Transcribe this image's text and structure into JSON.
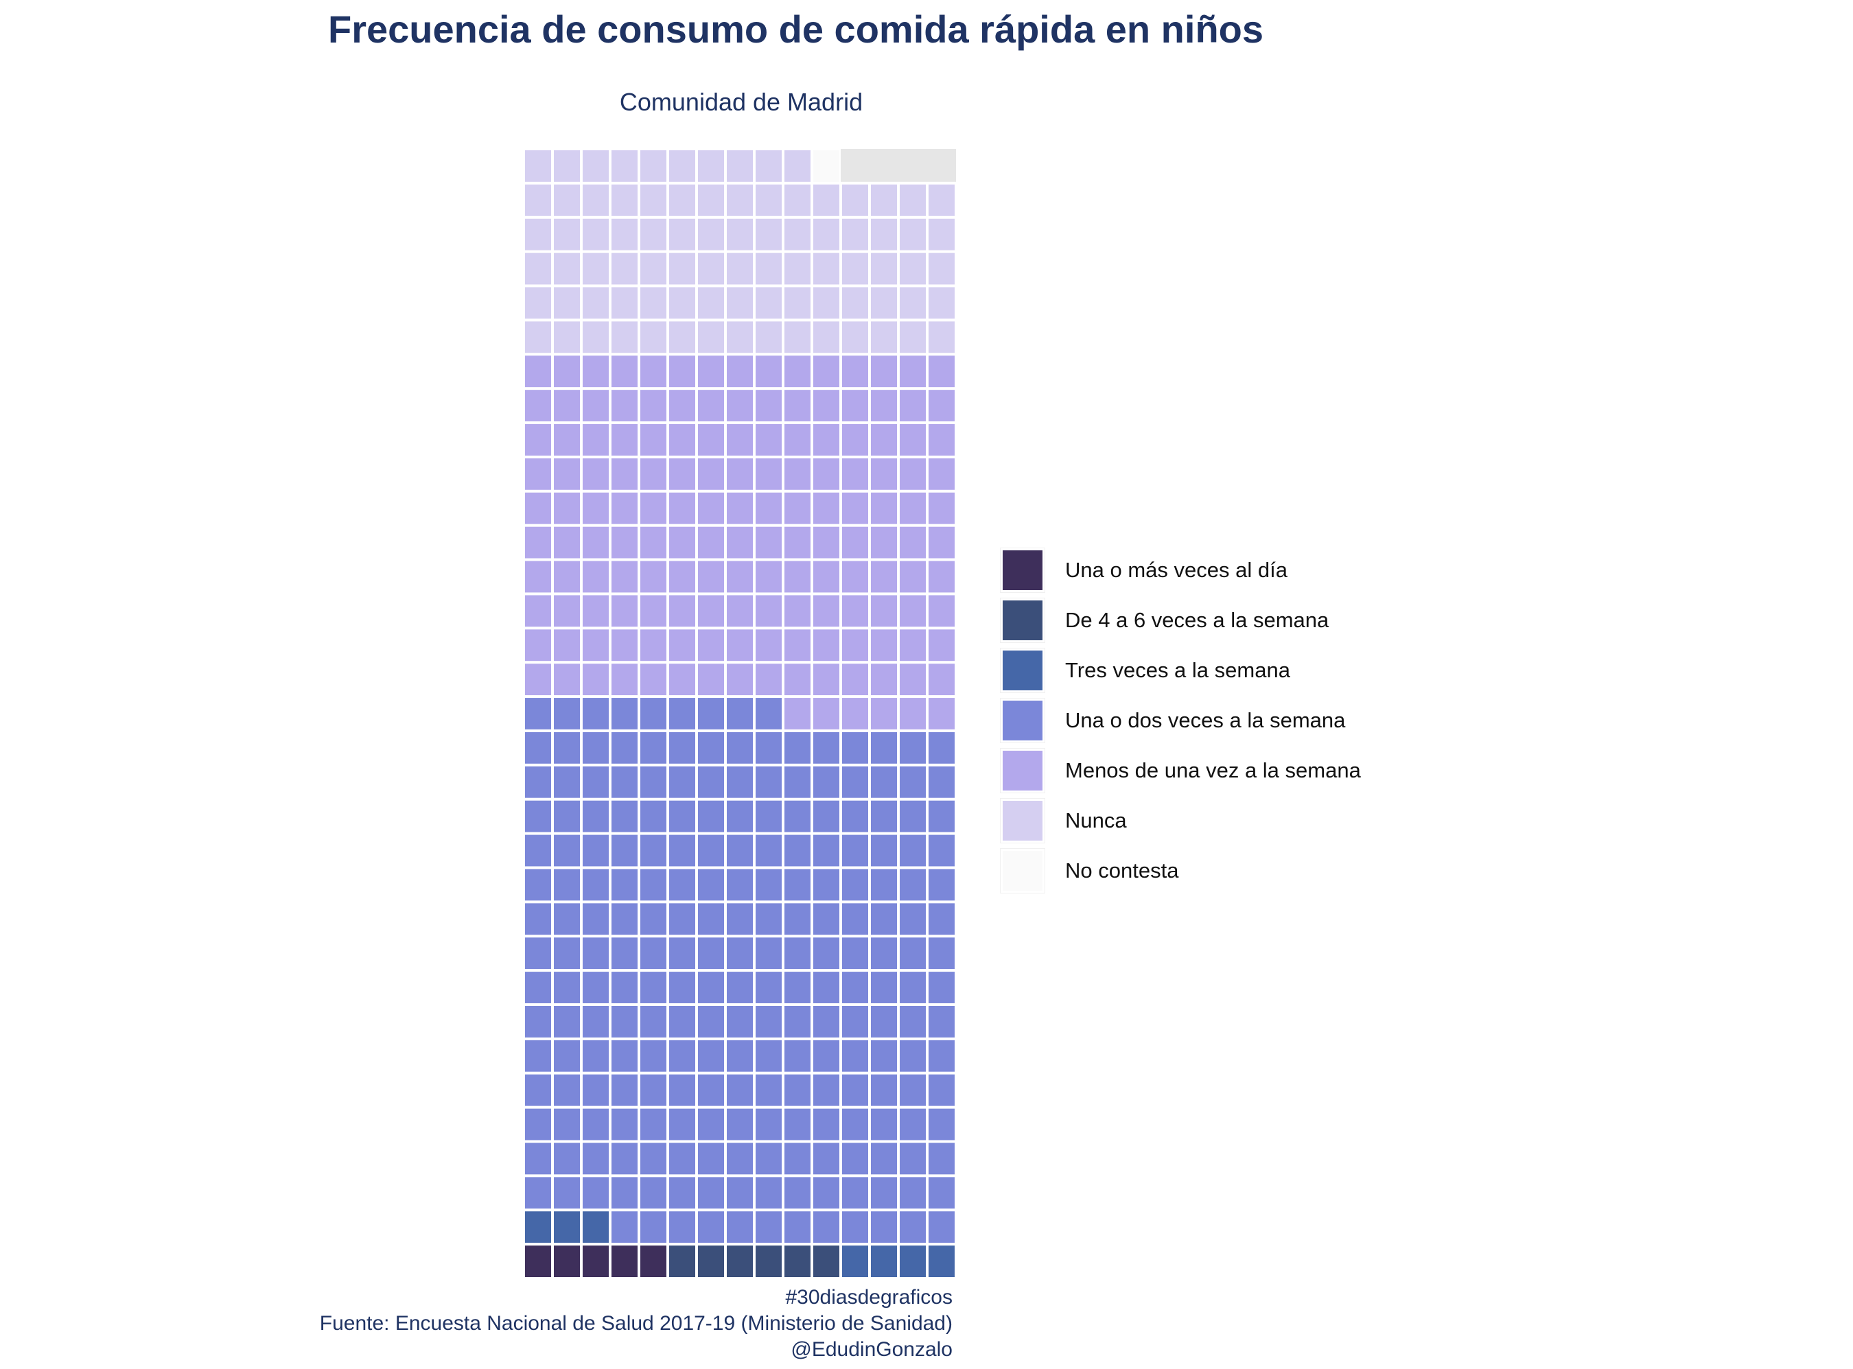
{
  "chart_data": {
    "type": "waffle",
    "title": "Frecuencia de consumo de comida rápida en niños",
    "subtitle": "Comunidad de Madrid",
    "columns": 15,
    "categories": [
      {
        "name": "Una o más veces al día",
        "value": 5,
        "color": "#3e2f5b"
      },
      {
        "name": "De 4 a 6 veces a la semana",
        "value": 6,
        "color": "#3b4f7a"
      },
      {
        "name": "Tres veces a la semana",
        "value": 7,
        "color": "#4567a8"
      },
      {
        "name": "Una o dos veces a la semana",
        "value": 231,
        "color": "#7b87d9"
      },
      {
        "name": "Menos de una vez a la semana",
        "value": 156,
        "color": "#b3a8ec"
      },
      {
        "name": "Nunca",
        "value": 85,
        "color": "#d5cff1"
      },
      {
        "name": "No contesta",
        "value": 1,
        "color": "#fafafa"
      }
    ],
    "empty_color": "#e6e6e6",
    "legend_position": "right"
  },
  "caption": {
    "line1": "#30diasdegraficos",
    "line2": "Fuente: Encuesta Nacional de Salud 2017-19 (Ministerio de Sanidad)",
    "line3": "@EdudinGonzalo"
  }
}
